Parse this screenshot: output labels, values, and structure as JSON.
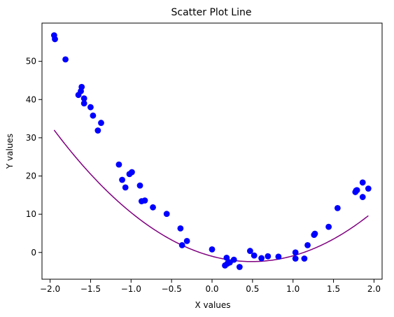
{
  "chart_data": {
    "type": "scatter",
    "title": "Scatter Plot Line",
    "xlabel": "X values",
    "ylabel": "Y values",
    "xlim": [
      -2.1,
      2.1
    ],
    "ylim": [
      -7,
      60
    ],
    "xticks": [
      -2.0,
      -1.5,
      -1.0,
      -0.5,
      0.0,
      0.5,
      1.0,
      1.5,
      2.0
    ],
    "xtick_labels": [
      "−2.0",
      "−1.5",
      "−1.0",
      "−0.5",
      "0.0",
      "0.5",
      "1.0",
      "1.5",
      "2.0"
    ],
    "yticks": [
      0,
      10,
      20,
      30,
      40,
      50
    ],
    "ytick_labels": [
      "0",
      "10",
      "20",
      "30",
      "40",
      "50"
    ],
    "grid": false,
    "scatter_color": "#0000ff",
    "line_color": "#800080",
    "points": [
      [
        -1.95,
        56.8
      ],
      [
        -1.94,
        55.8
      ],
      [
        -1.81,
        50.5
      ],
      [
        -1.65,
        41.2
      ],
      [
        -1.62,
        42.2
      ],
      [
        -1.61,
        43.3
      ],
      [
        -1.58,
        40.3
      ],
      [
        -1.58,
        39.0
      ],
      [
        -1.5,
        38.0
      ],
      [
        -1.47,
        35.8
      ],
      [
        -1.41,
        31.9
      ],
      [
        -1.37,
        33.9
      ],
      [
        -1.15,
        23.0
      ],
      [
        -1.11,
        19.0
      ],
      [
        -1.07,
        17.0
      ],
      [
        -1.02,
        20.5
      ],
      [
        -0.99,
        21.0
      ],
      [
        -0.89,
        17.5
      ],
      [
        -0.87,
        13.4
      ],
      [
        -0.83,
        13.6
      ],
      [
        -0.73,
        11.8
      ],
      [
        -0.56,
        10.1
      ],
      [
        -0.39,
        6.3
      ],
      [
        -0.37,
        1.9
      ],
      [
        -0.31,
        3.0
      ],
      [
        0.0,
        0.8
      ],
      [
        0.16,
        -3.4
      ],
      [
        0.18,
        -1.4
      ],
      [
        0.19,
        -2.9
      ],
      [
        0.22,
        -2.6
      ],
      [
        0.27,
        -1.9
      ],
      [
        0.34,
        -3.8
      ],
      [
        0.47,
        0.4
      ],
      [
        0.52,
        -0.8
      ],
      [
        0.61,
        -1.5
      ],
      [
        0.69,
        -1.0
      ],
      [
        0.82,
        -1.1
      ],
      [
        1.03,
        0.0
      ],
      [
        1.03,
        -1.6
      ],
      [
        1.14,
        -1.6
      ],
      [
        1.18,
        1.9
      ],
      [
        1.26,
        4.6
      ],
      [
        1.27,
        4.9
      ],
      [
        1.44,
        6.7
      ],
      [
        1.55,
        11.6
      ],
      [
        1.77,
        15.8
      ],
      [
        1.78,
        16.2
      ],
      [
        1.79,
        16.3
      ],
      [
        1.86,
        18.3
      ],
      [
        1.86,
        14.5
      ],
      [
        1.93,
        16.7
      ]
    ],
    "line_fit": {
      "type": "quadratic",
      "coefficients": [
        5.78,
        -5.66,
        -1.0
      ],
      "x_range": [
        -1.95,
        1.93
      ]
    }
  }
}
